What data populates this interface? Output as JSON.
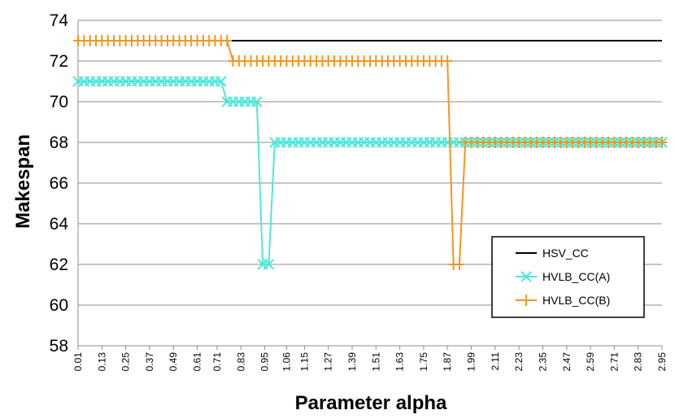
{
  "chart_data": {
    "type": "line",
    "title": "",
    "xlabel": "Parameter alpha",
    "ylabel": "Makespan",
    "ylim": [
      58,
      74
    ],
    "yticks": [
      58,
      60,
      62,
      64,
      66,
      68,
      70,
      72,
      74
    ],
    "xtick_labels": [
      "0.01",
      "0.13",
      "0.25",
      "0.37",
      "0.49",
      "0.61",
      "0.71",
      "0.83",
      "0.95",
      "1.06",
      "1.15",
      "1.27",
      "1.39",
      "1.51",
      "1.63",
      "1.75",
      "1.87",
      "1.99",
      "2.11",
      "2.23",
      "2.35",
      "2.47",
      "2.59",
      "2.71",
      "2.83",
      "2.95"
    ],
    "grid": true,
    "legend_position": "bottom-right",
    "x": [
      0.01,
      0.04,
      0.07,
      0.1,
      0.13,
      0.16,
      0.19,
      0.22,
      0.25,
      0.28,
      0.31,
      0.34,
      0.37,
      0.4,
      0.43,
      0.46,
      0.49,
      0.52,
      0.55,
      0.58,
      0.61,
      0.64,
      0.67,
      0.7,
      0.73,
      0.76,
      0.79,
      0.82,
      0.85,
      0.88,
      0.91,
      0.94,
      0.97,
      1.0,
      1.03,
      1.06,
      1.09,
      1.12,
      1.15,
      1.18,
      1.21,
      1.24,
      1.27,
      1.3,
      1.33,
      1.36,
      1.39,
      1.42,
      1.45,
      1.48,
      1.51,
      1.54,
      1.57,
      1.6,
      1.63,
      1.66,
      1.69,
      1.72,
      1.75,
      1.78,
      1.81,
      1.84,
      1.87,
      1.9,
      1.93,
      1.96,
      1.99,
      2.02,
      2.05,
      2.08,
      2.11,
      2.14,
      2.17,
      2.2,
      2.23,
      2.26,
      2.29,
      2.32,
      2.35,
      2.38,
      2.41,
      2.44,
      2.47,
      2.5,
      2.53,
      2.56,
      2.59,
      2.62,
      2.65,
      2.68,
      2.71,
      2.74,
      2.77,
      2.8,
      2.83,
      2.86,
      2.89,
      2.92,
      2.95
    ],
    "series": [
      {
        "name": "HSV_CC",
        "color": "#000000",
        "marker": "none",
        "values": [
          73,
          73,
          73,
          73,
          73,
          73,
          73,
          73,
          73,
          73,
          73,
          73,
          73,
          73,
          73,
          73,
          73,
          73,
          73,
          73,
          73,
          73,
          73,
          73,
          73,
          73,
          73,
          73,
          73,
          73,
          73,
          73,
          73,
          73,
          73,
          73,
          73,
          73,
          73,
          73,
          73,
          73,
          73,
          73,
          73,
          73,
          73,
          73,
          73,
          73,
          73,
          73,
          73,
          73,
          73,
          73,
          73,
          73,
          73,
          73,
          73,
          73,
          73,
          73,
          73,
          73,
          73,
          73,
          73,
          73,
          73,
          73,
          73,
          73,
          73,
          73,
          73,
          73,
          73,
          73,
          73,
          73,
          73,
          73,
          73,
          73,
          73,
          73,
          73,
          73,
          73,
          73,
          73,
          73,
          73,
          73,
          73,
          73,
          73
        ]
      },
      {
        "name": "HVLB_CC(A)",
        "color": "#4FE8D8",
        "marker": "x",
        "values": [
          71,
          71,
          71,
          71,
          71,
          71,
          71,
          71,
          71,
          71,
          71,
          71,
          71,
          71,
          71,
          71,
          71,
          71,
          71,
          71,
          71,
          71,
          71,
          71,
          71,
          70,
          70,
          70,
          70,
          70,
          70,
          62,
          62,
          68,
          68,
          68,
          68,
          68,
          68,
          68,
          68,
          68,
          68,
          68,
          68,
          68,
          68,
          68,
          68,
          68,
          68,
          68,
          68,
          68,
          68,
          68,
          68,
          68,
          68,
          68,
          68,
          68,
          68,
          68,
          68,
          68,
          68,
          68,
          68,
          68,
          68,
          68,
          68,
          68,
          68,
          68,
          68,
          68,
          68,
          68,
          68,
          68,
          68,
          68,
          68,
          68,
          68,
          68,
          68,
          68,
          68,
          68,
          68,
          68,
          68,
          68,
          68,
          68,
          68
        ]
      },
      {
        "name": "HVLB_CC(B)",
        "color": "#F7941D",
        "marker": "+",
        "values": [
          73,
          73,
          73,
          73,
          73,
          73,
          73,
          73,
          73,
          73,
          73,
          73,
          73,
          73,
          73,
          73,
          73,
          73,
          73,
          73,
          73,
          73,
          73,
          73,
          73,
          73,
          72,
          72,
          72,
          72,
          72,
          72,
          72,
          72,
          72,
          72,
          72,
          72,
          72,
          72,
          72,
          72,
          72,
          72,
          72,
          72,
          72,
          72,
          72,
          72,
          72,
          72,
          72,
          72,
          72,
          72,
          72,
          72,
          72,
          72,
          72,
          72,
          72,
          62,
          62,
          68,
          68,
          68,
          68,
          68,
          68,
          68,
          68,
          68,
          68,
          68,
          68,
          68,
          68,
          68,
          68,
          68,
          68,
          68,
          68,
          68,
          68,
          68,
          68,
          68,
          68,
          68,
          68,
          68,
          68,
          68,
          68,
          68,
          68
        ]
      }
    ]
  }
}
